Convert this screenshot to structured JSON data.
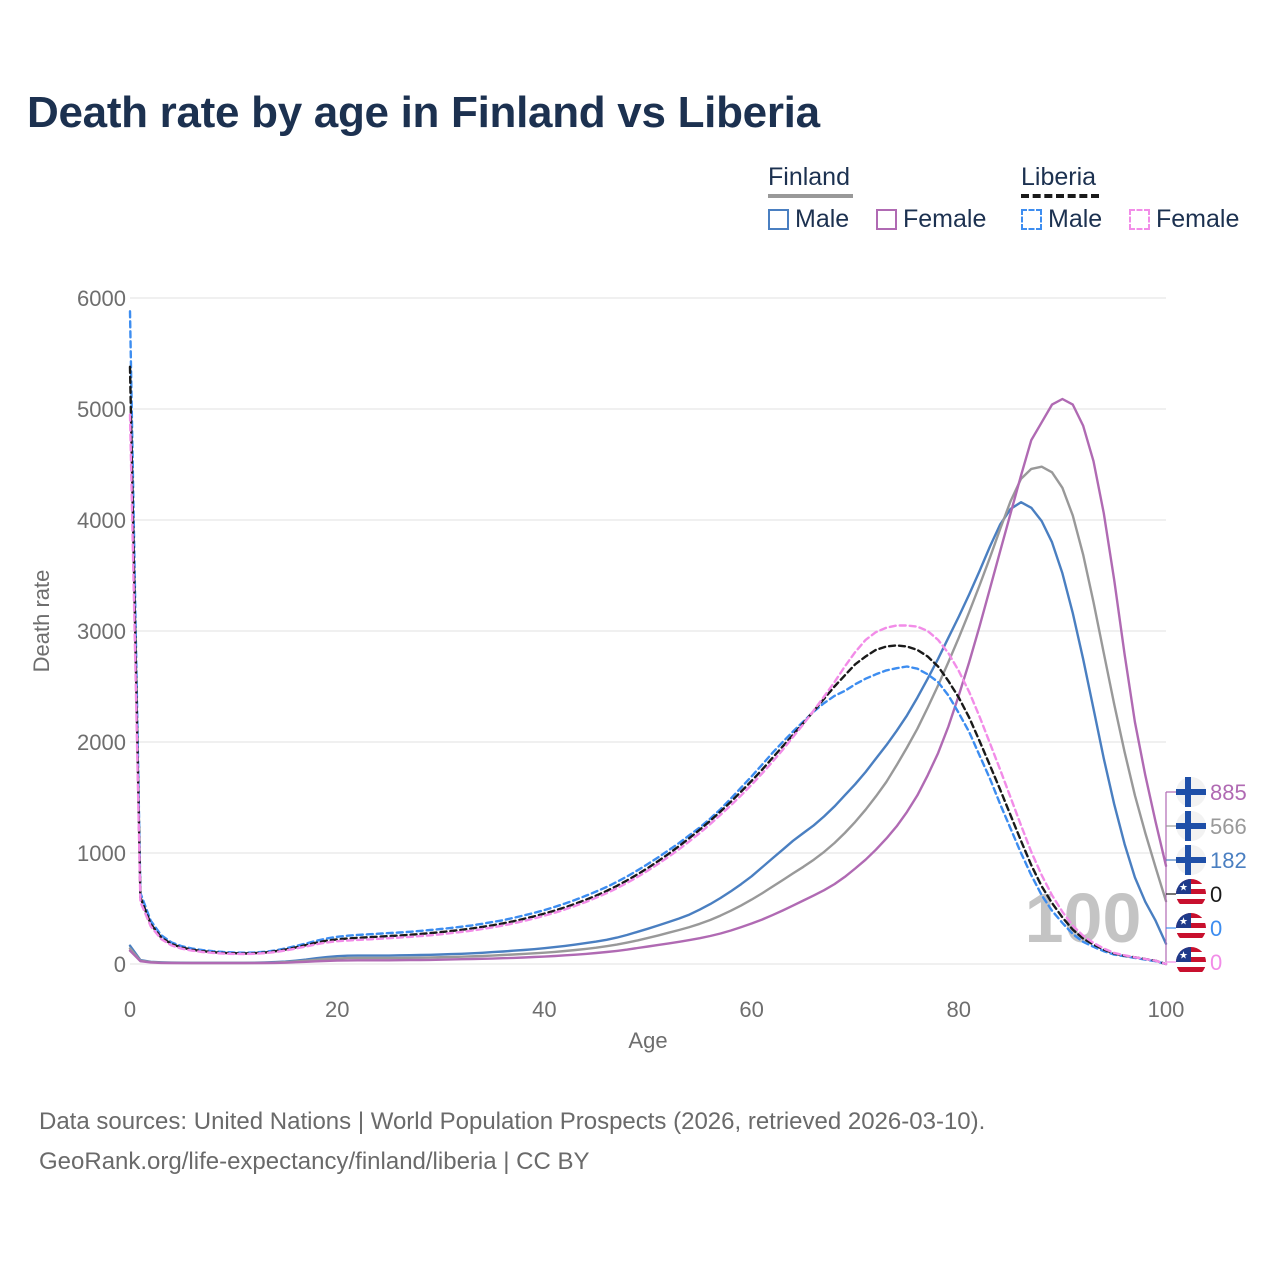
{
  "title": "Death rate by age in Finland vs Liberia",
  "legend": {
    "groups": [
      {
        "name": "Finland",
        "line_style": "solid",
        "line_color": "#999999"
      },
      {
        "name": "Liberia",
        "line_style": "dashed",
        "line_color": "#1a1a1a"
      }
    ],
    "items": [
      {
        "label": "Male",
        "group": "Finland",
        "color": "#4a7fc1",
        "style": "solid"
      },
      {
        "label": "Female",
        "group": "Finland",
        "color": "#b06ab3",
        "style": "solid"
      },
      {
        "label": "Male",
        "group": "Liberia",
        "color": "#3d8df0",
        "style": "dashed"
      },
      {
        "label": "Female",
        "group": "Liberia",
        "color": "#f28ce8",
        "style": "dashed"
      }
    ]
  },
  "overlay_age": "100",
  "footer": {
    "line1": "Data sources: United Nations | World Population Prospects (2026, retrieved 2026-03-10).",
    "line2": "GeoRank.org/life-expectancy/finland/liberia | CC BY"
  },
  "chart_data": {
    "type": "line",
    "title": "Death rate by age in Finland vs Liberia",
    "xlabel": "Age",
    "ylabel": "Death rate",
    "xlim": [
      0,
      100
    ],
    "ylim": [
      0,
      6000
    ],
    "x_ticks": [
      "0",
      "20",
      "40",
      "60",
      "80",
      "100"
    ],
    "y_ticks": [
      "0",
      "1000",
      "2000",
      "3000",
      "4000",
      "5000",
      "6000"
    ],
    "grid": true,
    "x": [
      0,
      1,
      2,
      3,
      4,
      5,
      6,
      7,
      8,
      9,
      10,
      11,
      12,
      13,
      14,
      15,
      16,
      17,
      18,
      19,
      20,
      21,
      22,
      23,
      24,
      25,
      26,
      27,
      28,
      29,
      30,
      31,
      32,
      33,
      34,
      35,
      36,
      37,
      38,
      39,
      40,
      41,
      42,
      43,
      44,
      45,
      46,
      47,
      48,
      49,
      50,
      51,
      52,
      53,
      54,
      55,
      56,
      57,
      58,
      59,
      60,
      61,
      62,
      63,
      64,
      65,
      66,
      67,
      68,
      69,
      70,
      71,
      72,
      73,
      74,
      75,
      76,
      77,
      78,
      79,
      80,
      81,
      82,
      83,
      84,
      85,
      86,
      87,
      88,
      89,
      90,
      91,
      92,
      93,
      94,
      95,
      96,
      97,
      98,
      99,
      100
    ],
    "series": [
      {
        "name": "Finland Male",
        "country": "Finland",
        "sex": "Male",
        "color": "#4a7fc1",
        "dash": false,
        "end_value": "182",
        "flag": "finland",
        "values": [
          165,
          35,
          20,
          15,
          13,
          12,
          11,
          11,
          11,
          11,
          11,
          11,
          12,
          14,
          17,
          22,
          30,
          40,
          52,
          62,
          70,
          75,
          76,
          76,
          76,
          76,
          78,
          79,
          81,
          83,
          86,
          89,
          92,
          96,
          101,
          107,
          113,
          120,
          126,
          133,
          142,
          152,
          163,
          175,
          188,
          202,
          218,
          238,
          262,
          290,
          318,
          348,
          378,
          410,
          445,
          490,
          540,
          595,
          655,
          720,
          790,
          870,
          950,
          1030,
          1110,
          1180,
          1250,
          1330,
          1420,
          1520,
          1620,
          1730,
          1850,
          1970,
          2100,
          2240,
          2400,
          2570,
          2750,
          2940,
          3130,
          3330,
          3540,
          3760,
          3960,
          4100,
          4160,
          4110,
          3990,
          3800,
          3520,
          3160,
          2750,
          2300,
          1850,
          1440,
          1080,
          780,
          560,
          390,
          182
        ]
      },
      {
        "name": "Finland Combined",
        "country": "Finland",
        "sex": "Total",
        "color": "#999999",
        "dash": false,
        "end_value": "566",
        "flag": "finland",
        "values": [
          140,
          30,
          17,
          13,
          11,
          10,
          9,
          9,
          9,
          9,
          9,
          9,
          10,
          11,
          13,
          17,
          23,
          30,
          38,
          45,
          50,
          53,
          54,
          54,
          54,
          54,
          55,
          56,
          57,
          59,
          61,
          63,
          66,
          69,
          72,
          76,
          81,
          86,
          91,
          96,
          102,
          109,
          117,
          126,
          136,
          147,
          160,
          175,
          193,
          213,
          235,
          258,
          282,
          306,
          332,
          362,
          396,
          436,
          480,
          528,
          580,
          636,
          696,
          756,
          816,
          876,
          940,
          1010,
          1090,
          1180,
          1280,
          1390,
          1510,
          1640,
          1790,
          1950,
          2120,
          2310,
          2510,
          2720,
          2940,
          3170,
          3410,
          3660,
          3920,
          4170,
          4370,
          4460,
          4480,
          4430,
          4290,
          4040,
          3690,
          3260,
          2800,
          2340,
          1910,
          1520,
          1180,
          870,
          566
        ]
      },
      {
        "name": "Finland Female",
        "country": "Finland",
        "sex": "Female",
        "color": "#b06ab3",
        "dash": false,
        "end_value": "885",
        "flag": "finland",
        "values": [
          120,
          25,
          14,
          10,
          9,
          8,
          8,
          8,
          8,
          8,
          8,
          8,
          8,
          9,
          10,
          12,
          16,
          20,
          24,
          28,
          31,
          32,
          33,
          33,
          33,
          33,
          34,
          35,
          36,
          37,
          39,
          41,
          43,
          45,
          47,
          49,
          52,
          55,
          59,
          63,
          67,
          72,
          78,
          84,
          91,
          99,
          108,
          118,
          130,
          144,
          158,
          172,
          186,
          200,
          215,
          232,
          252,
          275,
          302,
          332,
          365,
          400,
          440,
          482,
          526,
          572,
          618,
          665,
          720,
          785,
          860,
          940,
          1030,
          1130,
          1240,
          1370,
          1520,
          1700,
          1900,
          2140,
          2420,
          2720,
          3040,
          3380,
          3720,
          4060,
          4400,
          4720,
          4880,
          5040,
          5090,
          5040,
          4850,
          4530,
          4060,
          3460,
          2790,
          2180,
          1700,
          1280,
          885
        ]
      },
      {
        "name": "Liberia Male",
        "country": "Liberia",
        "sex": "Male",
        "color": "#3d8df0",
        "dash": true,
        "end_value": "0",
        "flag": "liberia",
        "values": [
          5880,
          640,
          390,
          260,
          195,
          160,
          140,
          125,
          115,
          108,
          104,
          102,
          104,
          110,
          122,
          140,
          162,
          185,
          210,
          230,
          245,
          255,
          262,
          268,
          273,
          278,
          284,
          290,
          298,
          306,
          315,
          325,
          336,
          348,
          362,
          378,
          395,
          415,
          437,
          460,
          486,
          514,
          545,
          578,
          614,
          653,
          694,
          740,
          790,
          844,
          902,
          962,
          1025,
          1090,
          1160,
          1230,
          1310,
          1395,
          1490,
          1590,
          1690,
          1795,
          1900,
          2000,
          2095,
          2185,
          2275,
          2350,
          2415,
          2460,
          2520,
          2570,
          2610,
          2645,
          2665,
          2680,
          2660,
          2610,
          2540,
          2420,
          2260,
          2090,
          1880,
          1670,
          1440,
          1220,
          1000,
          800,
          620,
          480,
          370,
          270,
          200,
          155,
          115,
          85,
          70,
          55,
          40,
          25,
          0
        ]
      },
      {
        "name": "Liberia Combined",
        "country": "Liberia",
        "sex": "Total",
        "color": "#1a1a1a",
        "dash": true,
        "end_value": "0",
        "flag": "liberia",
        "values": [
          5380,
          600,
          360,
          240,
          180,
          148,
          128,
          115,
          106,
          100,
          97,
          95,
          97,
          103,
          114,
          130,
          150,
          170,
          192,
          210,
          222,
          230,
          236,
          241,
          246,
          251,
          257,
          263,
          270,
          278,
          287,
          297,
          308,
          320,
          334,
          349,
          366,
          385,
          406,
          429,
          454,
          481,
          511,
          543,
          578,
          616,
          658,
          704,
          754,
          808,
          866,
          928,
          993,
          1062,
          1134,
          1210,
          1290,
          1374,
          1462,
          1554,
          1650,
          1750,
          1855,
          1960,
          2065,
          2170,
          2280,
          2390,
          2500,
          2600,
          2700,
          2770,
          2830,
          2860,
          2870,
          2860,
          2830,
          2770,
          2680,
          2550,
          2400,
          2220,
          2010,
          1790,
          1570,
          1340,
          1110,
          890,
          700,
          550,
          420,
          310,
          230,
          175,
          130,
          95,
          75,
          60,
          45,
          30,
          0
        ]
      },
      {
        "name": "Liberia Female",
        "country": "Liberia",
        "sex": "Female",
        "color": "#f28ce8",
        "dash": true,
        "end_value": "0",
        "flag": "liberia",
        "values": [
          4950,
          560,
          340,
          225,
          168,
          138,
          120,
          108,
          100,
          94,
          91,
          90,
          92,
          97,
          107,
          122,
          140,
          158,
          178,
          194,
          205,
          212,
          217,
          222,
          227,
          232,
          238,
          244,
          251,
          259,
          268,
          278,
          289,
          301,
          315,
          330,
          347,
          366,
          387,
          410,
          435,
          462,
          492,
          524,
          559,
          597,
          638,
          683,
          732,
          785,
          842,
          903,
          967,
          1034,
          1105,
          1180,
          1260,
          1343,
          1430,
          1520,
          1615,
          1715,
          1820,
          1930,
          2045,
          2160,
          2285,
          2410,
          2540,
          2680,
          2810,
          2920,
          2990,
          3030,
          3050,
          3050,
          3040,
          3000,
          2920,
          2800,
          2640,
          2450,
          2230,
          1990,
          1750,
          1500,
          1250,
          1010,
          800,
          620,
          470,
          345,
          255,
          190,
          140,
          100,
          78,
          60,
          45,
          30,
          0
        ]
      }
    ]
  }
}
